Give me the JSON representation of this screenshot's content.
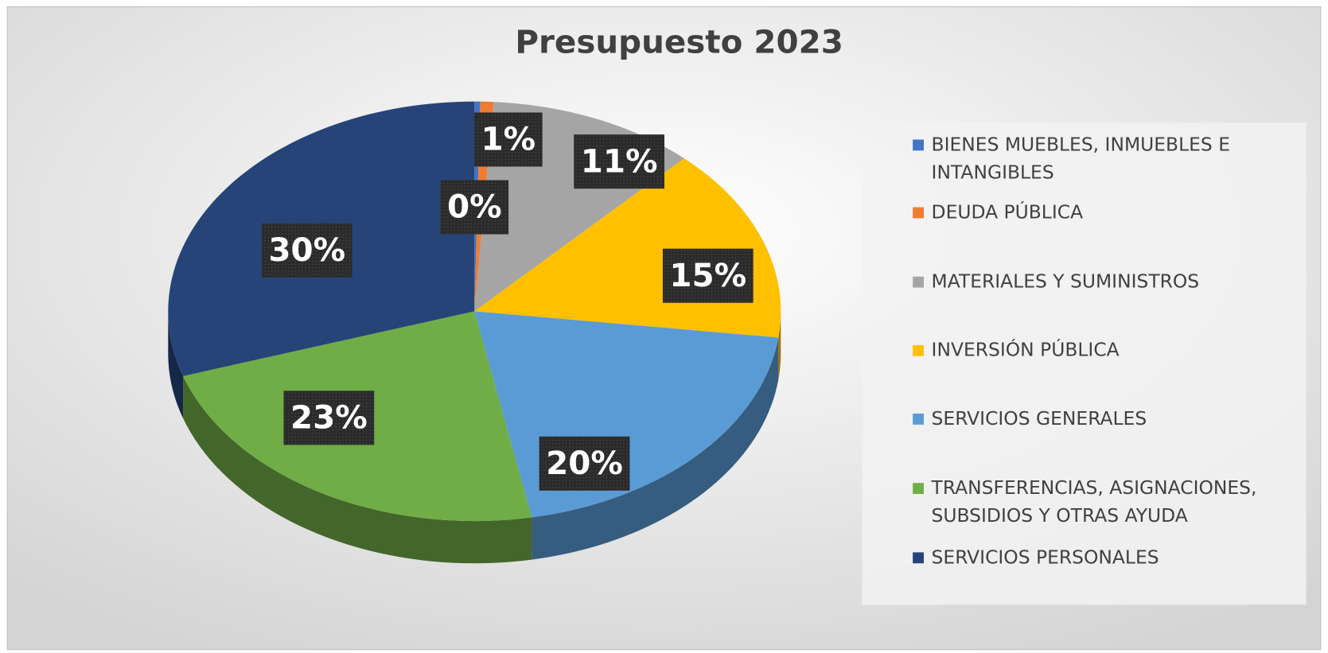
{
  "chart_data": {
    "type": "pie",
    "title": "Presupuesto 2023",
    "categories": [
      "BIENES MUEBLES, INMUEBLES E INTANGIBLES",
      "DEUDA PÚBLICA",
      "MATERIALES Y SUMINISTROS",
      "INVERSIÓN PÚBLICA",
      "SERVICIOS GENERALES",
      "TRANSFERENCIAS, ASIGNACIONES, SUBSIDIOS Y OTRAS AYUDA",
      "SERVICIOS PERSONALES"
    ],
    "values": [
      0.3,
      0.7,
      11,
      15,
      20,
      23,
      30
    ],
    "value_labels": [
      "0%",
      "1%",
      "11%",
      "15%",
      "20%",
      "23%",
      "30%"
    ],
    "colors": [
      "#4472c4",
      "#ed7d31",
      "#a5a5a5",
      "#ffc000",
      "#5b9bd5",
      "#70ad47",
      "#264478"
    ],
    "legend": "right"
  }
}
